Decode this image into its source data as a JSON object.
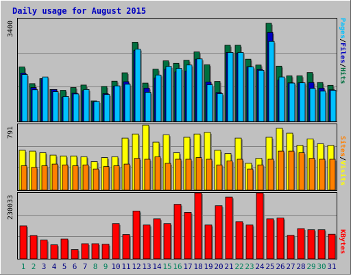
{
  "colors": {
    "background": "#c0c0c0",
    "panel": "#c0c0c0",
    "hits": "#006f3f",
    "files": "#0000c0",
    "pages": "#00c0ff",
    "visits": "#ffff00",
    "sites": "#ff8000",
    "kbytes": "#ff0000",
    "title": "#0000c0",
    "weekday_label": "#000080",
    "weekend_label": "#00805c",
    "grid": "#808080"
  },
  "chart_data": [
    {
      "type": "bar",
      "title": "Daily usage for August 2015",
      "categories": [
        "1",
        "2",
        "3",
        "4",
        "5",
        "6",
        "7",
        "8",
        "9",
        "10",
        "11",
        "12",
        "13",
        "14",
        "15",
        "16",
        "17",
        "18",
        "19",
        "20",
        "21",
        "22",
        "23",
        "24",
        "25",
        "26",
        "27",
        "28",
        "29",
        "30",
        "31"
      ],
      "weekend_days": [
        "1",
        "2",
        "8",
        "9",
        "15",
        "16",
        "22",
        "23",
        "29",
        "30"
      ],
      "ymax_label": "3400",
      "ylim": [
        0,
        3700
      ],
      "legend": [
        "Pages",
        "/",
        "Files",
        "/",
        "Hits"
      ],
      "series": [
        {
          "name": "Hits",
          "values": [
            1960,
            1360,
            1540,
            1150,
            1120,
            1220,
            1310,
            740,
            1260,
            1450,
            1750,
            2850,
            1380,
            1880,
            2180,
            2090,
            2200,
            2500,
            2040,
            1440,
            2740,
            2740,
            2240,
            2030,
            3530,
            1990,
            1640,
            1640,
            1760,
            1400,
            1300
          ]
        },
        {
          "name": "Files",
          "values": [
            1740,
            1220,
            1540,
            1150,
            880,
            1020,
            1110,
            700,
            1000,
            1270,
            1430,
            2550,
            1200,
            1560,
            1880,
            1780,
            1810,
            2240,
            1420,
            1040,
            2480,
            2460,
            1970,
            1870,
            3200,
            1490,
            1390,
            1390,
            1400,
            1200,
            1140
          ]
        },
        {
          "name": "Pages",
          "values": [
            1690,
            1140,
            1600,
            1070,
            900,
            990,
            1150,
            720,
            970,
            1280,
            1340,
            2600,
            1050,
            1670,
            1980,
            1910,
            2030,
            2250,
            1320,
            1000,
            2480,
            2480,
            1960,
            1840,
            2880,
            1600,
            1380,
            1390,
            1190,
            1090,
            1120
          ]
        }
      ]
    },
    {
      "type": "bar",
      "categories": [
        "1",
        "2",
        "3",
        "4",
        "5",
        "6",
        "7",
        "8",
        "9",
        "10",
        "11",
        "12",
        "13",
        "14",
        "15",
        "16",
        "17",
        "18",
        "19",
        "20",
        "21",
        "22",
        "23",
        "24",
        "25",
        "26",
        "27",
        "28",
        "29",
        "30",
        "31"
      ],
      "ymax_label": "791",
      "ylim": [
        0,
        810
      ],
      "legend": [
        "Sites",
        "/",
        "Visits"
      ],
      "series": [
        {
          "name": "Visits",
          "values": [
            490,
            480,
            460,
            430,
            420,
            420,
            410,
            350,
            400,
            410,
            640,
            690,
            800,
            590,
            680,
            460,
            650,
            690,
            710,
            490,
            450,
            640,
            330,
            390,
            650,
            760,
            700,
            550,
            630,
            570,
            550
          ]
        },
        {
          "name": "Sites",
          "values": [
            300,
            280,
            300,
            320,
            310,
            300,
            310,
            260,
            290,
            300,
            320,
            390,
            380,
            410,
            330,
            380,
            380,
            400,
            380,
            310,
            360,
            380,
            260,
            310,
            380,
            480,
            480,
            460,
            390,
            380,
            380
          ]
        }
      ]
    },
    {
      "type": "bar",
      "categories": [
        "1",
        "2",
        "3",
        "4",
        "5",
        "6",
        "7",
        "8",
        "9",
        "10",
        "11",
        "12",
        "13",
        "14",
        "15",
        "16",
        "17",
        "18",
        "19",
        "20",
        "21",
        "22",
        "23",
        "24",
        "25",
        "26",
        "27",
        "28",
        "29",
        "30",
        "31"
      ],
      "ymax_label": "230033",
      "ylim": [
        0,
        236000
      ],
      "legend": [
        "KBytes"
      ],
      "series": [
        {
          "name": "KBytes",
          "values": [
            118000,
            83000,
            67000,
            50000,
            71000,
            33000,
            54000,
            54000,
            52000,
            126000,
            87000,
            171000,
            121000,
            143000,
            126000,
            195000,
            166000,
            236000,
            121000,
            190000,
            221000,
            133000,
            121000,
            236000,
            143000,
            146000,
            84000,
            108000,
            104000,
            104000,
            88000
          ]
        }
      ]
    }
  ]
}
